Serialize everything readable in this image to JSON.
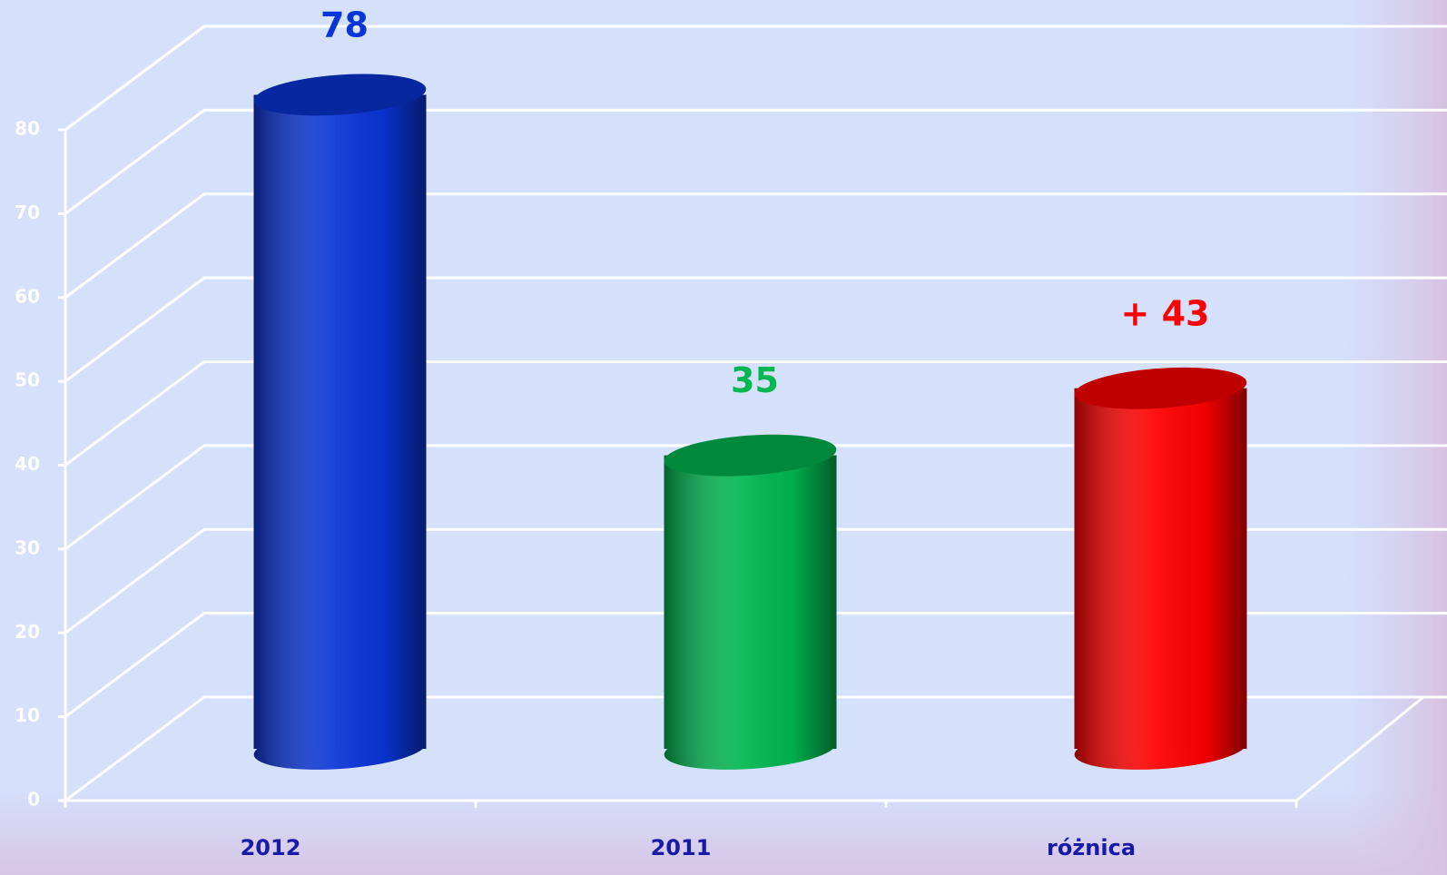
{
  "chart_data": {
    "type": "bar",
    "categories": [
      "2012",
      "2011",
      "różnica"
    ],
    "values": [
      78,
      35,
      43
    ],
    "value_labels": [
      "78",
      "35",
      "+ 43"
    ],
    "colors": [
      "#0a35d6",
      "#00b650",
      "#ff0000"
    ],
    "ylim": [
      0,
      80
    ],
    "yticks": [
      0,
      10,
      20,
      30,
      40,
      50,
      60,
      70,
      80
    ],
    "grid": true
  }
}
